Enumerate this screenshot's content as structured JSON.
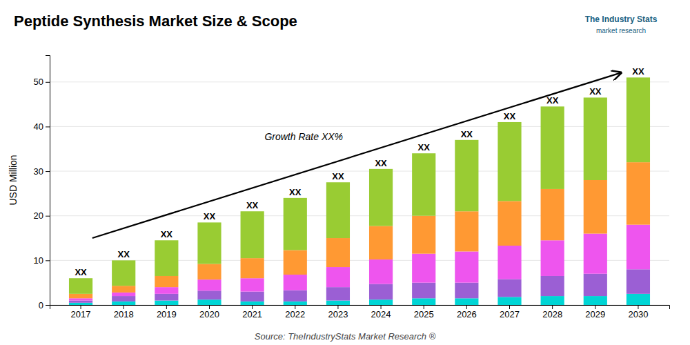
{
  "chart_data": {
    "type": "bar",
    "stacked": true,
    "title": "Peptide Synthesis Market Size & Scope",
    "y_label": "USD Million",
    "source": "Source: TheIndustryStats Market Research ®",
    "logo_title": "The Industry Stats",
    "logo_subtitle": "market research",
    "bar_label": "XX",
    "growth_label": "Growth Rate XX%",
    "categories": [
      "2017",
      "2018",
      "2019",
      "2020",
      "2021",
      "2022",
      "2023",
      "2024",
      "2025",
      "2026",
      "2027",
      "2028",
      "2029",
      "2030"
    ],
    "series": [
      {
        "color": "#00D5D5",
        "values": [
          0.5,
          0.8,
          1.0,
          1.2,
          0.8,
          0.8,
          1.0,
          1.2,
          1.5,
          1.5,
          1.8,
          2.0,
          2.0,
          2.5
        ]
      },
      {
        "color": "#9B5FD4",
        "values": [
          0.5,
          1.2,
          1.5,
          2.0,
          2.2,
          2.5,
          3.0,
          3.5,
          3.5,
          3.5,
          4.0,
          4.5,
          5.0,
          5.5
        ]
      },
      {
        "color": "#EE55EE",
        "values": [
          0.5,
          0.8,
          1.5,
          2.5,
          3.0,
          3.5,
          4.5,
          5.5,
          6.5,
          7.0,
          7.5,
          8.0,
          9.0,
          10.0
        ]
      },
      {
        "color": "#FF9933",
        "values": [
          1.0,
          1.5,
          2.5,
          3.5,
          4.5,
          5.5,
          6.5,
          7.5,
          8.5,
          9.0,
          10.0,
          11.5,
          12.0,
          14.0
        ]
      },
      {
        "color": "#99CC33",
        "values": [
          3.5,
          5.7,
          8.0,
          9.3,
          10.5,
          11.7,
          12.5,
          12.8,
          14.0,
          16.0,
          17.7,
          18.5,
          18.5,
          19.0
        ]
      }
    ],
    "ylim": [
      0,
      56
    ],
    "yticks": [
      0,
      10,
      20,
      30,
      40,
      50
    ],
    "grid": true
  }
}
